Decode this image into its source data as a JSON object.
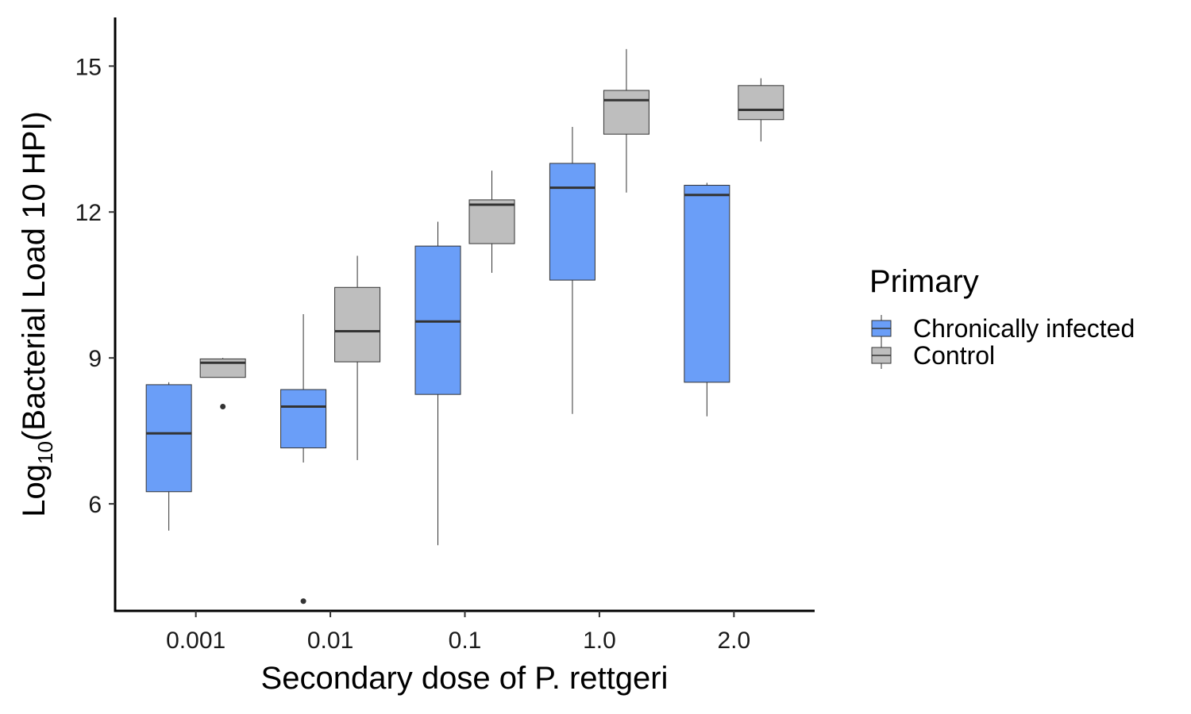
{
  "chart_data": {
    "type": "boxplot",
    "xlabel": "Secondary dose of P. rettgeri",
    "ylabel": {
      "prefix": "Log",
      "subscript": "10",
      "suffix": "(Bacterial Load 10 HPI)"
    },
    "ylim": [
      3.8,
      16.0
    ],
    "yticks": [
      6,
      9,
      12,
      15
    ],
    "grid": false,
    "legend": {
      "title": "Primary",
      "placement": "right"
    },
    "categories": [
      "0.001",
      "0.01",
      "0.1",
      "1.0",
      "2.0"
    ],
    "series": [
      {
        "name": "Chronically infected",
        "color": "#6a9ef8",
        "boxes": [
          {
            "whisker_low": 5.45,
            "q1": 6.25,
            "median": 7.45,
            "q3": 8.45,
            "whisker_high": 8.5,
            "outliers": []
          },
          {
            "whisker_low": 6.85,
            "q1": 7.15,
            "median": 8.0,
            "q3": 8.35,
            "whisker_high": 9.9,
            "outliers": [
              4.0
            ]
          },
          {
            "whisker_low": 5.15,
            "q1": 8.25,
            "median": 9.75,
            "q3": 11.3,
            "whisker_high": 11.8,
            "outliers": []
          },
          {
            "whisker_low": 7.85,
            "q1": 10.6,
            "median": 12.5,
            "q3": 13.0,
            "whisker_high": 13.75,
            "outliers": []
          },
          {
            "whisker_low": 7.8,
            "q1": 8.5,
            "median": 12.35,
            "q3": 12.55,
            "whisker_high": 12.6,
            "outliers": []
          }
        ]
      },
      {
        "name": "Control",
        "color": "#bebebe",
        "boxes": [
          {
            "whisker_low": 8.6,
            "q1": 8.6,
            "median": 8.9,
            "q3": 8.98,
            "whisker_high": 9.0,
            "outliers": [
              8.0
            ]
          },
          {
            "whisker_low": 6.9,
            "q1": 8.92,
            "median": 9.55,
            "q3": 10.45,
            "whisker_high": 11.1,
            "outliers": []
          },
          {
            "whisker_low": 10.75,
            "q1": 11.35,
            "median": 12.15,
            "q3": 12.25,
            "whisker_high": 12.85,
            "outliers": []
          },
          {
            "whisker_low": 12.4,
            "q1": 13.6,
            "median": 14.3,
            "q3": 14.5,
            "whisker_high": 15.35,
            "outliers": []
          },
          {
            "whisker_low": 13.45,
            "q1": 13.9,
            "median": 14.1,
            "q3": 14.6,
            "whisker_high": 14.75,
            "outliers": []
          }
        ]
      }
    ]
  }
}
